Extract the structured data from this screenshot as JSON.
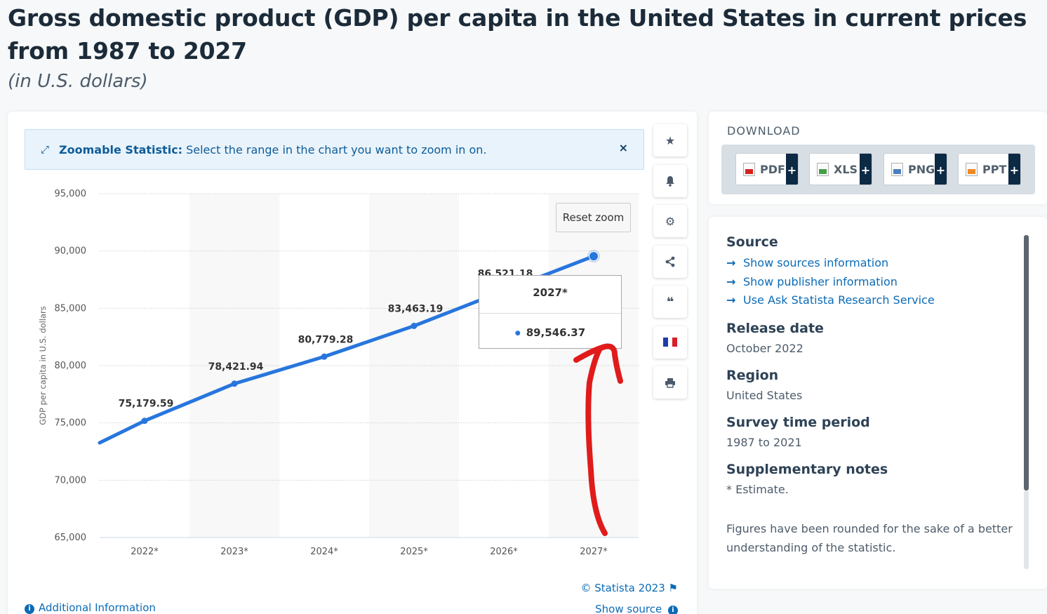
{
  "header": {
    "title": "Gross domestic product (GDP) per capita in the United States in current prices from 1987 to 2027",
    "subtitle": "(in U.S. dollars)"
  },
  "zoom_banner": {
    "label_bold": "Zoomable Statistic:",
    "label": "Select the range in the chart you want to zoom in on.",
    "close": "×"
  },
  "toolbar": {
    "icons": [
      "star-icon",
      "bell-icon",
      "gear-icon",
      "share-icon",
      "quote-icon",
      "french-flag-icon",
      "print-icon"
    ]
  },
  "reset_zoom_label": "Reset zoom",
  "tooltip": {
    "category": "2027*",
    "value": "89,546.37"
  },
  "chart_data": {
    "type": "line",
    "ylabel": "GDP per capita in U.S. dollars",
    "ylim": [
      65000,
      95000
    ],
    "yticks": [
      "95,000",
      "90,000",
      "85,000",
      "80,000",
      "75,000",
      "70,000",
      "65,000"
    ],
    "categories": [
      "2022*",
      "2023*",
      "2024*",
      "2025*",
      "2026*",
      "2027*"
    ],
    "values": [
      75179.59,
      78421.94,
      80779.28,
      83463.19,
      86521.18,
      89546.37
    ],
    "data_labels": [
      "75,179.59",
      "78,421.94",
      "80,779.28",
      "83,463.19",
      "86,521.18",
      ""
    ],
    "series_color": "#2876dd",
    "grid": true
  },
  "footer": {
    "credit": "© Statista 2023",
    "show_source": "Show source",
    "additional_info": "Additional Information"
  },
  "download": {
    "title": "DOWNLOAD",
    "buttons": [
      {
        "label": "PDF",
        "plus": "+"
      },
      {
        "label": "XLS",
        "plus": "+"
      },
      {
        "label": "PNG",
        "plus": "+"
      },
      {
        "label": "PPT",
        "plus": "+"
      }
    ]
  },
  "meta": {
    "source_h": "Source",
    "source_links": [
      "Show sources information",
      "Show publisher information",
      "Use Ask Statista Research Service"
    ],
    "release_h": "Release date",
    "release_v": "October 2022",
    "region_h": "Region",
    "region_v": "United States",
    "survey_h": "Survey time period",
    "survey_v": "1987 to 2021",
    "supp_h": "Supplementary notes",
    "supp_v1": "* Estimate.",
    "supp_v2": "Figures have been rounded for the sake of a better understanding of the statistic."
  },
  "colors": {
    "accent": "#0b6bb6",
    "annotation": "#e01b1b"
  }
}
